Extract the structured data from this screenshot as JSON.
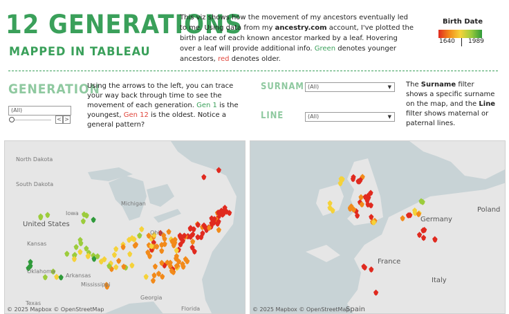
{
  "header": {
    "title": "12 GENERATIONS",
    "subtitle": "MAPPED IN TABLEAU"
  },
  "intro": {
    "p1": "This viz shows how the movement of my ancestors eventually led to me. Using data from my",
    "site": "ancestry.com",
    "p2": "account, I've plotted the birth place of each known ancestor marked by a leaf. Hovering over a leaf will provide additional info.",
    "green_word": "Green",
    "p3": "denotes younger ancestors,",
    "red_word": "red",
    "p4": "denotes older."
  },
  "legend": {
    "title": "Birth Date",
    "min": "1640",
    "max": "1989",
    "colors": [
      "#e02a1f",
      "#f28a1a",
      "#f5d23a",
      "#9ccc3c",
      "#2f9a3a"
    ]
  },
  "generation": {
    "label": "GENERATION",
    "select_value": "(All)",
    "prev_label": "<",
    "next_label": ">",
    "desc1": "Using the arrows to the left, you can trace your way back through time to see the movement of each generation.",
    "gen1": "Gen 1",
    "desc2": "is the youngest,",
    "gen12": "Gen 12",
    "desc3": "is the oldest. Notice a general pattern?"
  },
  "surname": {
    "label": "SURNAME",
    "select_value": "(All)"
  },
  "line": {
    "label": "LINE",
    "select_value": "(All)"
  },
  "filters_desc": {
    "t1": "The",
    "surname_word": "Surname",
    "t2": "filter shows a specific surname on the map, and the",
    "line_word": "Line",
    "t3": "filter shows maternal or paternal lines."
  },
  "map_us": {
    "attribution": "© 2025 Mapbox © OpenStreetMap",
    "labels": {
      "north_dakota": "North Dakota",
      "south_dakota": "South Dakota",
      "iowa": "Iowa",
      "kansas": "Kansas",
      "united_states": "United States",
      "oklahoma": "Oklahoma",
      "arkansas": "Arkansas",
      "mississippi": "Mississippi",
      "texas": "Texas",
      "michigan": "Michigan",
      "ohio": "Ohio",
      "georgia": "Georgia",
      "florida": "Florida"
    }
  },
  "map_eu": {
    "attribution": "© 2025 Mapbox © OpenStreetMap",
    "labels": {
      "poland": "Poland",
      "germany": "Germany",
      "france": "France",
      "italy": "Italy",
      "spain": "Spain"
    }
  }
}
